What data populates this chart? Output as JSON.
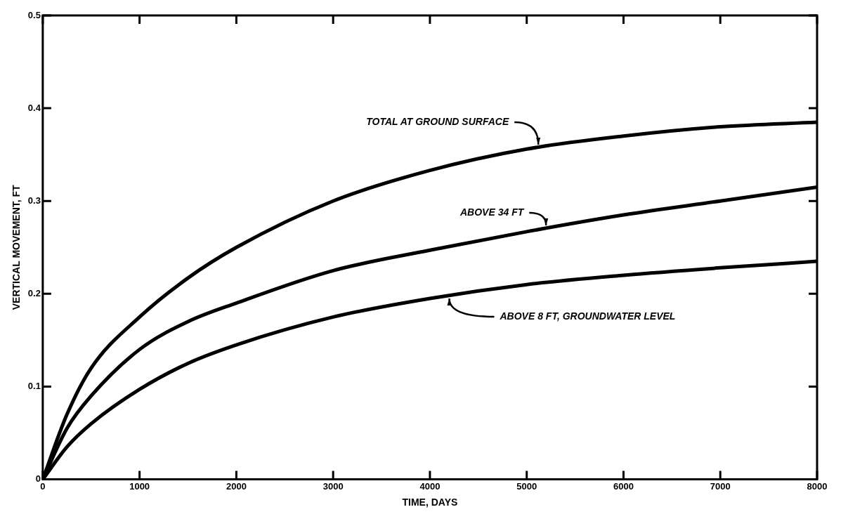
{
  "chart_data": {
    "type": "line",
    "xlabel": "TIME, DAYS",
    "ylabel": "VERTICAL MOVEMENT, FT",
    "x": [
      0,
      250,
      500,
      1000,
      1500,
      2000,
      3000,
      4000,
      5000,
      6000,
      7000,
      8000
    ],
    "series": [
      {
        "name": "TOTAL AT GROUND SURFACE",
        "color": "#000000",
        "values": [
          0,
          0.07,
          0.12,
          0.175,
          0.217,
          0.25,
          0.3,
          0.333,
          0.356,
          0.37,
          0.38,
          0.385
        ]
      },
      {
        "name": "ABOVE 34 FT",
        "color": "#000000",
        "values": [
          0,
          0.055,
          0.09,
          0.14,
          0.17,
          0.19,
          0.225,
          0.247,
          0.267,
          0.285,
          0.3,
          0.315
        ]
      },
      {
        "name": "ABOVE 8 FT, GROUNDWATER LEVEL",
        "color": "#000000",
        "values": [
          0,
          0.035,
          0.06,
          0.097,
          0.125,
          0.145,
          0.175,
          0.195,
          0.21,
          0.22,
          0.228,
          0.235
        ]
      }
    ],
    "xlim": [
      0,
      8000
    ],
    "xticks": [
      0,
      1000,
      2000,
      3000,
      4000,
      5000,
      6000,
      7000,
      8000
    ],
    "ylim": [
      0,
      0.5
    ],
    "yticks": [
      0,
      0.1,
      0.2,
      0.3,
      0.4,
      0.5
    ],
    "grid": false,
    "legend": false,
    "marker": "none",
    "line_style": "solid"
  }
}
